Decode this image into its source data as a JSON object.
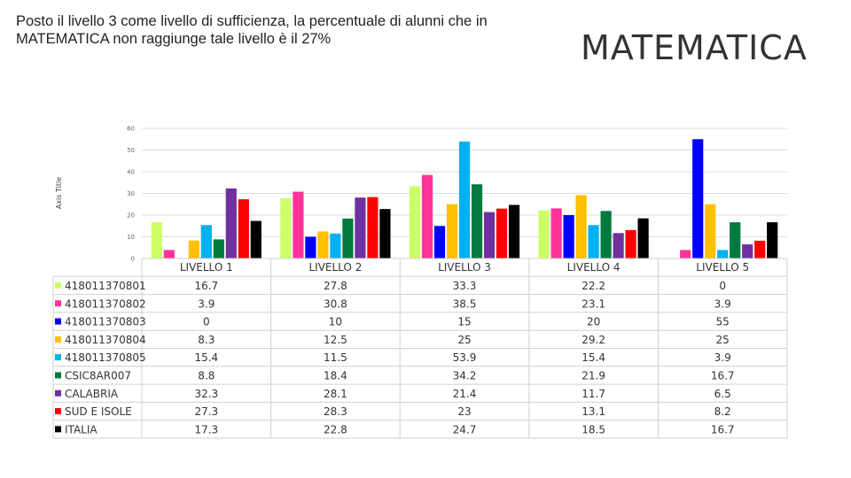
{
  "page": {
    "headline_line1": "Posto il livello 3 come livello di sufficienza, la percentuale di alunni che in",
    "headline_line2": "MATEMATICA  non raggiunge tale livello è  il 27%",
    "big_title": "MATEMATICA"
  },
  "chart_data": {
    "type": "bar",
    "title": "MATEMATICA",
    "xlabel": "",
    "ylabel": "Axis Title",
    "ylim": [
      0,
      60
    ],
    "yticks": [
      "0",
      "10",
      "20",
      "30",
      "40",
      "50",
      "60"
    ],
    "grid": true,
    "legend": "data-table-left",
    "categories": [
      "LIVELLO 1",
      "LIVELLO 2",
      "LIVELLO 3",
      "LIVELLO 4",
      "LIVELLO 5"
    ],
    "series": [
      {
        "name": "418011370801",
        "color": "#ccff66",
        "values": [
          16.7,
          27.8,
          33.3,
          22.2,
          0
        ],
        "labels": [
          "16.7",
          "27.8",
          "33.3",
          "22.2",
          "0"
        ]
      },
      {
        "name": "418011370802",
        "color": "#ff3399",
        "values": [
          3.9,
          30.8,
          38.5,
          23.1,
          3.9
        ],
        "labels": [
          "3.9",
          "30.8",
          "38.5",
          "23.1",
          "3.9"
        ]
      },
      {
        "name": "418011370803",
        "color": "#0000ff",
        "values": [
          0,
          10,
          15,
          20,
          55
        ],
        "labels": [
          "0",
          "10",
          "15",
          "20",
          "55"
        ]
      },
      {
        "name": "418011370804",
        "color": "#ffc000",
        "values": [
          8.3,
          12.5,
          25,
          29.2,
          25
        ],
        "labels": [
          "8.3",
          "12.5",
          "25",
          "29.2",
          "25"
        ]
      },
      {
        "name": "418011370805",
        "color": "#00b0f0",
        "values": [
          15.4,
          11.5,
          53.9,
          15.4,
          3.9
        ],
        "labels": [
          "15.4",
          "11.5",
          "53.9",
          "15.4",
          "3.9"
        ]
      },
      {
        "name": "CSIC8AR007",
        "color": "#007a3d",
        "values": [
          8.8,
          18.4,
          34.2,
          21.9,
          16.7
        ],
        "labels": [
          "8.8",
          "18.4",
          "34.2",
          "21.9",
          "16.7"
        ]
      },
      {
        "name": "CALABRIA",
        "color": "#7030a0",
        "values": [
          32.3,
          28.1,
          21.4,
          11.7,
          6.5
        ],
        "labels": [
          "32.3",
          "28.1",
          "21.4",
          "11.7",
          "6.5"
        ]
      },
      {
        "name": "SUD E ISOLE",
        "color": "#ff0000",
        "values": [
          27.3,
          28.3,
          23,
          13.1,
          8.2
        ],
        "labels": [
          "27.3",
          "28.3",
          "23",
          "13.1",
          "8.2"
        ]
      },
      {
        "name": "ITALIA",
        "color": "#000000",
        "values": [
          17.3,
          22.8,
          24.7,
          18.5,
          16.7
        ],
        "labels": [
          "17.3",
          "22.8",
          "24.7",
          "18.5",
          "16.7"
        ]
      }
    ]
  }
}
